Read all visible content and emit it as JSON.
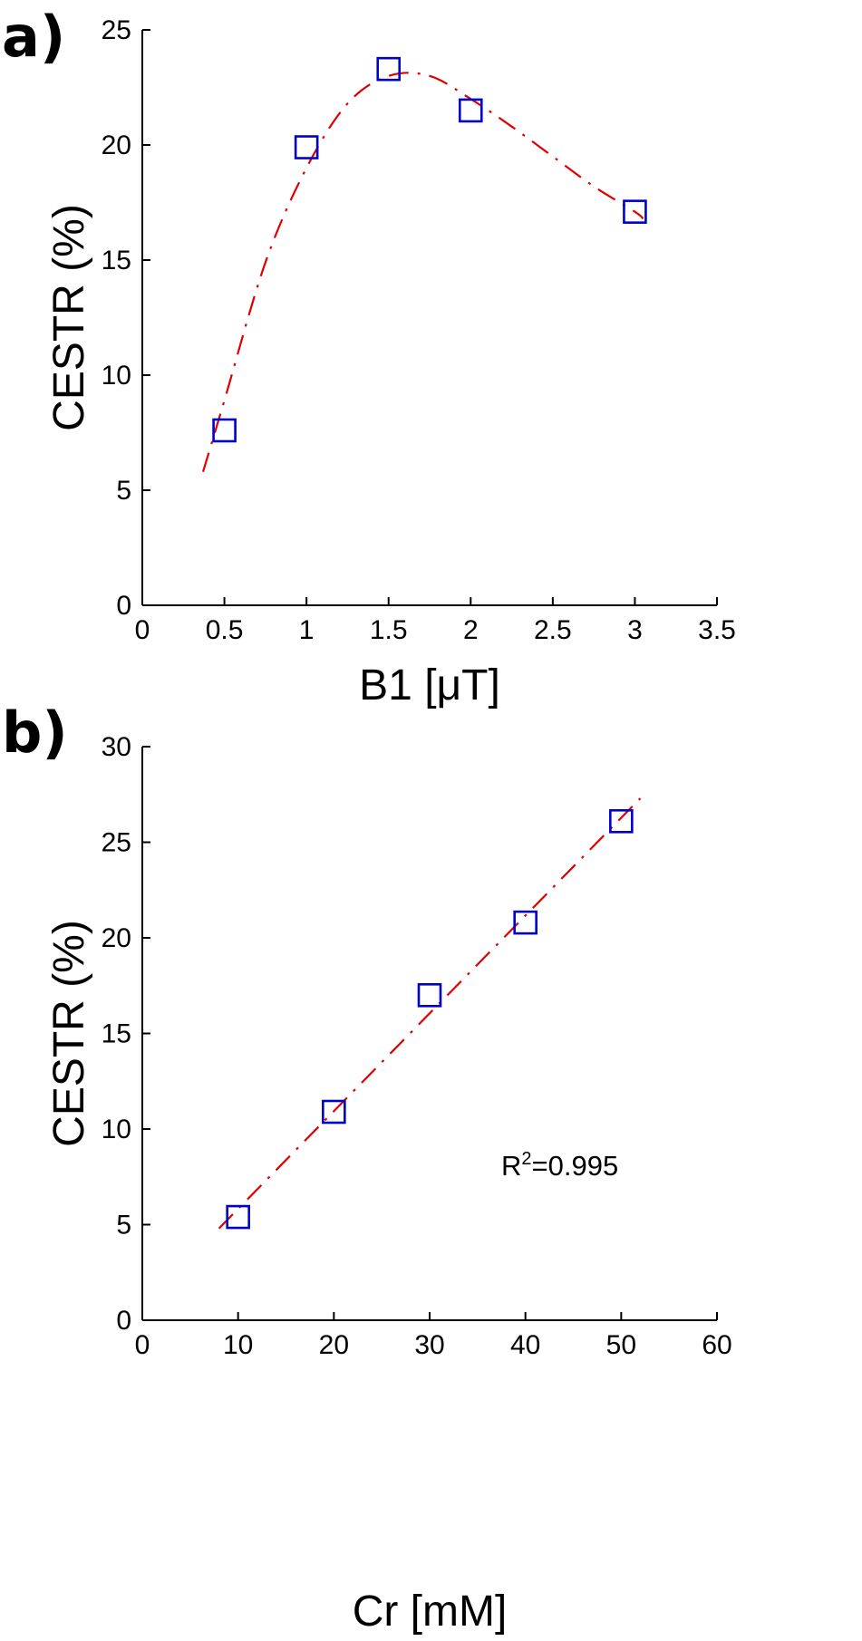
{
  "chart_data": [
    {
      "type": "scatter",
      "panel_label": "a)",
      "xlabel": "B1 [μT]",
      "ylabel": "CESTR (%)",
      "xlim": [
        0,
        3.5
      ],
      "ylim": [
        0,
        25
      ],
      "xticks": [
        "0",
        "0.5",
        "1",
        "1.5",
        "2",
        "2.5",
        "3",
        "3.5"
      ],
      "yticks": [
        "0",
        "5",
        "10",
        "15",
        "20",
        "25"
      ],
      "grid": false,
      "series": [
        {
          "x": [
            0.5,
            1.0,
            1.5,
            2.0,
            3.0
          ],
          "y": [
            7.6,
            19.9,
            23.3,
            21.5,
            17.1
          ]
        }
      ],
      "fit_curve": {
        "x": [
          0.37,
          0.5,
          0.75,
          1.0,
          1.25,
          1.5,
          1.75,
          2.0,
          2.25,
          2.5,
          2.75,
          3.0,
          3.05
        ],
        "y": [
          5.8,
          8.9,
          14.9,
          19.0,
          21.8,
          23.0,
          23.0,
          22.0,
          20.8,
          19.5,
          18.2,
          17.1,
          16.8
        ]
      },
      "colors": {
        "marker": "#0000cc",
        "fit": "#e00000"
      }
    },
    {
      "type": "scatter",
      "panel_label": "b)",
      "xlabel": "Cr [mM]",
      "ylabel": "CESTR (%)",
      "xlim": [
        0,
        60
      ],
      "ylim": [
        0,
        30
      ],
      "xticks": [
        "0",
        "10",
        "20",
        "30",
        "40",
        "50",
        "60"
      ],
      "yticks": [
        "0",
        "5",
        "10",
        "15",
        "20",
        "25",
        "30"
      ],
      "grid": false,
      "annotation": {
        "base": "R",
        "sup": "2",
        "rest": "=0.995"
      },
      "series": [
        {
          "x": [
            10,
            20,
            30,
            40,
            50
          ],
          "y": [
            5.4,
            10.9,
            17.0,
            20.8,
            26.1
          ]
        }
      ],
      "fit_curve": {
        "x": [
          8,
          52
        ],
        "y": [
          4.8,
          27.3
        ]
      },
      "colors": {
        "marker": "#0000cc",
        "fit": "#e00000"
      }
    }
  ]
}
